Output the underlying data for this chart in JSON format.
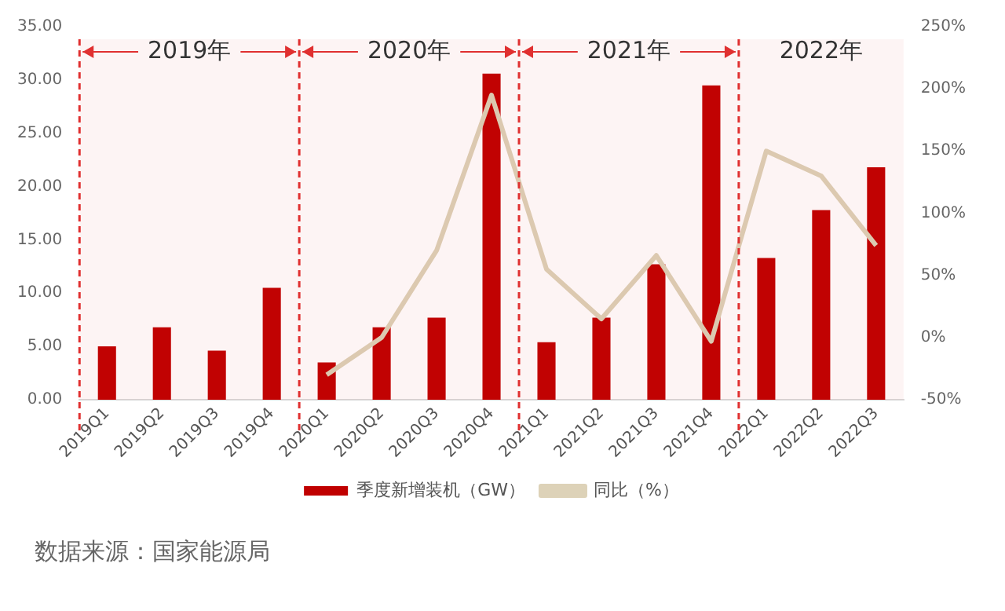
{
  "chart_data": {
    "type": "bar",
    "categories": [
      "2019Q1",
      "2019Q2",
      "2019Q3",
      "2019Q4",
      "2020Q1",
      "2020Q2",
      "2020Q3",
      "2020Q4",
      "2021Q1",
      "2021Q2",
      "2021Q3",
      "2021Q4",
      "2022Q1",
      "2022Q2",
      "2022Q3"
    ],
    "series": [
      {
        "name": "季度新增装机（GW）",
        "color": "#c00000",
        "values": [
          5.0,
          6.8,
          4.6,
          10.5,
          3.5,
          6.8,
          7.7,
          30.6,
          5.4,
          7.7,
          12.7,
          29.5,
          13.3,
          17.8,
          21.8
        ]
      },
      {
        "name": "同比（%）",
        "color": "#ddd2b8",
        "type": "line",
        "axis": "y2",
        "values": [
          null,
          null,
          null,
          null,
          -30,
          0,
          70,
          195,
          55,
          15,
          66,
          -3,
          150,
          130,
          74
        ]
      }
    ],
    "ylim": [
      0,
      35
    ],
    "yticks": [
      {
        "value": 0,
        "label": "0.00"
      },
      {
        "value": 5,
        "label": "5.00"
      },
      {
        "value": 10,
        "label": "10.00"
      },
      {
        "value": 15,
        "label": "15.00"
      },
      {
        "value": 20,
        "label": "20.00"
      },
      {
        "value": 25,
        "label": "25.00"
      },
      {
        "value": 30,
        "label": "30.00"
      },
      {
        "value": 35,
        "label": "35.00"
      }
    ],
    "y2lim": [
      -50,
      250
    ],
    "y2ticks": [
      {
        "value": -50,
        "label": "-50%"
      },
      {
        "value": 0,
        "label": "0%"
      },
      {
        "value": 50,
        "label": "50%"
      },
      {
        "value": 100,
        "label": "100%"
      },
      {
        "value": 150,
        "label": "150%"
      },
      {
        "value": 200,
        "label": "200%"
      },
      {
        "value": 250,
        "label": "250%"
      }
    ],
    "bands": [
      {
        "axis": "x",
        "from": "2019Q1",
        "to": "2019Q4",
        "label": "2019年",
        "color": "#e03030"
      },
      {
        "axis": "x",
        "from": "2020Q1",
        "to": "2020Q4",
        "label": "2020年",
        "color": "#e03030"
      },
      {
        "axis": "x",
        "from": "2021Q1",
        "to": "2021Q4",
        "label": "2021年",
        "color": "#e03030"
      },
      {
        "axis": "x",
        "from": "2022Q1",
        "to": "2022Q3",
        "label": "2022年",
        "color": "#e03030"
      }
    ],
    "grid": false,
    "legend": "bottom",
    "marker": "none",
    "line_style": "solid",
    "annotations": [
      "数据来源：国家能源局"
    ]
  }
}
